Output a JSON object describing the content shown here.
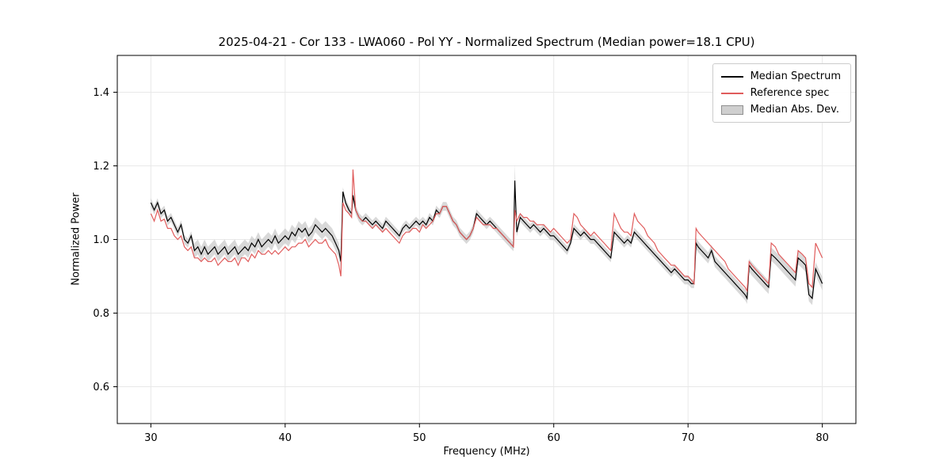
{
  "chart_data": {
    "type": "line",
    "title": "2025-04-21 - Cor 133 - LWA060 - Pol YY - Normalized Spectrum (Median power=18.1 CPU)",
    "xlabel": "Frequency (MHz)",
    "ylabel": "Normalized Power",
    "xlim": [
      27.5,
      82.5
    ],
    "ylim": [
      0.5,
      1.5
    ],
    "xticks": [
      30,
      40,
      50,
      60,
      70,
      80
    ],
    "yticks": [
      0.6,
      0.8,
      1.0,
      1.2,
      1.4
    ],
    "grid": true,
    "legend_position": "upper right",
    "colors": {
      "median": "#000000",
      "reference": "#e05c5c",
      "band": "#b9b9b9",
      "grid": "#e8e8e8",
      "frame": "#000000"
    },
    "legend": [
      {
        "label": "Median Spectrum",
        "type": "line",
        "color": "#000000"
      },
      {
        "label": "Reference spec",
        "type": "line",
        "color": "#e05c5c"
      },
      {
        "label": "Median Abs. Dev.",
        "type": "band",
        "color": "#cfcfcf"
      }
    ],
    "x": [
      30,
      30.25,
      30.5,
      30.75,
      31,
      31.25,
      31.5,
      31.75,
      32,
      32.25,
      32.5,
      32.75,
      33,
      33.25,
      33.5,
      33.75,
      34,
      34.25,
      34.5,
      34.75,
      35,
      35.25,
      35.5,
      35.75,
      36,
      36.25,
      36.5,
      36.75,
      37,
      37.25,
      37.5,
      37.75,
      38,
      38.25,
      38.5,
      38.75,
      39,
      39.25,
      39.5,
      39.75,
      40,
      40.25,
      40.5,
      40.75,
      41,
      41.25,
      41.5,
      41.75,
      42,
      42.25,
      42.5,
      42.75,
      43,
      43.25,
      43.5,
      43.75,
      44,
      44.15,
      44.3,
      44.5,
      44.75,
      44.95,
      45.05,
      45.25,
      45.5,
      45.75,
      46,
      46.25,
      46.5,
      46.75,
      47,
      47.25,
      47.5,
      47.75,
      48,
      48.25,
      48.5,
      48.75,
      49,
      49.25,
      49.5,
      49.75,
      50,
      50.25,
      50.5,
      50.75,
      51,
      51.25,
      51.5,
      51.75,
      52,
      52.25,
      52.5,
      52.75,
      53,
      53.25,
      53.5,
      53.75,
      54,
      54.25,
      54.5,
      54.75,
      55,
      55.25,
      55.5,
      55.75,
      56,
      56.25,
      56.5,
      56.75,
      57,
      57.1,
      57.25,
      57.5,
      57.75,
      58,
      58.25,
      58.5,
      58.75,
      59,
      59.25,
      59.5,
      59.75,
      60,
      60.25,
      60.5,
      60.75,
      61,
      61.25,
      61.5,
      61.75,
      62,
      62.25,
      62.5,
      62.75,
      63,
      63.25,
      63.5,
      63.75,
      64,
      64.25,
      64.5,
      64.75,
      65,
      65.25,
      65.5,
      65.75,
      66,
      66.25,
      66.5,
      66.75,
      67,
      67.25,
      67.5,
      67.75,
      68,
      68.25,
      68.5,
      68.75,
      69,
      69.25,
      69.5,
      69.75,
      70,
      70.25,
      70.45,
      70.6,
      70.75,
      71,
      71.25,
      71.5,
      71.75,
      72,
      72.25,
      72.5,
      72.75,
      73,
      73.25,
      73.5,
      73.75,
      74,
      74.25,
      74.4,
      74.55,
      74.75,
      75,
      75.25,
      75.5,
      75.75,
      76,
      76.2,
      76.5,
      76.75,
      77,
      77.25,
      77.5,
      77.75,
      78,
      78.2,
      78.5,
      78.75,
      79,
      79.25,
      79.5,
      79.75,
      80
    ],
    "series": [
      {
        "name": "Median Spectrum",
        "values": [
          1.1,
          1.08,
          1.1,
          1.07,
          1.08,
          1.05,
          1.06,
          1.04,
          1.02,
          1.04,
          1.0,
          0.99,
          1.01,
          0.97,
          0.98,
          0.96,
          0.98,
          0.96,
          0.97,
          0.98,
          0.96,
          0.97,
          0.98,
          0.96,
          0.97,
          0.98,
          0.96,
          0.97,
          0.98,
          0.97,
          0.99,
          0.98,
          1.0,
          0.98,
          0.99,
          1.0,
          0.99,
          1.01,
          0.99,
          1.0,
          1.01,
          1.0,
          1.02,
          1.01,
          1.03,
          1.02,
          1.03,
          1.01,
          1.02,
          1.04,
          1.03,
          1.02,
          1.03,
          1.02,
          1.01,
          0.99,
          0.97,
          0.94,
          1.13,
          1.1,
          1.08,
          1.07,
          1.12,
          1.08,
          1.06,
          1.05,
          1.06,
          1.05,
          1.04,
          1.05,
          1.04,
          1.03,
          1.05,
          1.04,
          1.03,
          1.02,
          1.01,
          1.03,
          1.04,
          1.03,
          1.04,
          1.05,
          1.04,
          1.05,
          1.04,
          1.06,
          1.05,
          1.08,
          1.07,
          1.09,
          1.09,
          1.07,
          1.05,
          1.04,
          1.02,
          1.01,
          1.0,
          1.01,
          1.03,
          1.07,
          1.06,
          1.05,
          1.04,
          1.05,
          1.04,
          1.03,
          1.02,
          1.01,
          1.0,
          0.99,
          0.98,
          1.16,
          1.02,
          1.06,
          1.05,
          1.04,
          1.03,
          1.04,
          1.03,
          1.02,
          1.03,
          1.02,
          1.01,
          1.01,
          1.0,
          0.99,
          0.98,
          0.97,
          0.99,
          1.03,
          1.02,
          1.01,
          1.02,
          1.01,
          1.0,
          1.0,
          0.99,
          0.98,
          0.97,
          0.96,
          0.95,
          1.02,
          1.01,
          1.0,
          0.99,
          1.0,
          0.99,
          1.02,
          1.01,
          1.0,
          0.99,
          0.98,
          0.97,
          0.96,
          0.95,
          0.94,
          0.93,
          0.92,
          0.91,
          0.92,
          0.91,
          0.9,
          0.89,
          0.89,
          0.88,
          0.88,
          0.99,
          0.98,
          0.97,
          0.96,
          0.95,
          0.97,
          0.94,
          0.93,
          0.92,
          0.91,
          0.9,
          0.89,
          0.88,
          0.87,
          0.86,
          0.85,
          0.84,
          0.93,
          0.92,
          0.91,
          0.9,
          0.89,
          0.88,
          0.87,
          0.96,
          0.95,
          0.94,
          0.93,
          0.92,
          0.91,
          0.9,
          0.89,
          0.95,
          0.94,
          0.93,
          0.85,
          0.84,
          0.92,
          0.9,
          0.88
        ]
      },
      {
        "name": "Reference spec",
        "values": [
          1.07,
          1.05,
          1.08,
          1.05,
          1.055,
          1.03,
          1.03,
          1.01,
          1.0,
          1.01,
          0.98,
          0.97,
          0.98,
          0.95,
          0.95,
          0.94,
          0.95,
          0.94,
          0.94,
          0.95,
          0.93,
          0.94,
          0.95,
          0.94,
          0.94,
          0.95,
          0.93,
          0.95,
          0.95,
          0.94,
          0.96,
          0.95,
          0.97,
          0.96,
          0.96,
          0.97,
          0.96,
          0.97,
          0.96,
          0.97,
          0.98,
          0.97,
          0.98,
          0.98,
          0.99,
          0.99,
          1.0,
          0.98,
          0.99,
          1.0,
          0.99,
          0.99,
          1.0,
          0.98,
          0.97,
          0.96,
          0.93,
          0.9,
          1.1,
          1.08,
          1.07,
          1.06,
          1.19,
          1.08,
          1.06,
          1.05,
          1.05,
          1.04,
          1.03,
          1.04,
          1.03,
          1.02,
          1.03,
          1.02,
          1.01,
          1.0,
          0.99,
          1.01,
          1.02,
          1.02,
          1.03,
          1.03,
          1.02,
          1.04,
          1.03,
          1.04,
          1.05,
          1.07,
          1.07,
          1.09,
          1.09,
          1.07,
          1.05,
          1.04,
          1.02,
          1.01,
          1.0,
          1.01,
          1.03,
          1.06,
          1.05,
          1.04,
          1.04,
          1.04,
          1.03,
          1.03,
          1.02,
          1.01,
          1.0,
          0.99,
          0.98,
          1.08,
          1.05,
          1.07,
          1.06,
          1.06,
          1.05,
          1.05,
          1.04,
          1.04,
          1.04,
          1.03,
          1.02,
          1.03,
          1.02,
          1.01,
          1.0,
          0.99,
          1.0,
          1.07,
          1.06,
          1.04,
          1.03,
          1.02,
          1.01,
          1.02,
          1.01,
          1.0,
          0.99,
          0.98,
          0.97,
          1.07,
          1.05,
          1.03,
          1.02,
          1.02,
          1.01,
          1.07,
          1.05,
          1.04,
          1.03,
          1.01,
          1.0,
          0.99,
          0.97,
          0.96,
          0.95,
          0.94,
          0.93,
          0.93,
          0.92,
          0.91,
          0.9,
          0.9,
          0.89,
          0.88,
          1.03,
          1.02,
          1.01,
          1.0,
          0.99,
          0.98,
          0.97,
          0.96,
          0.95,
          0.94,
          0.92,
          0.91,
          0.9,
          0.89,
          0.88,
          0.87,
          0.86,
          0.94,
          0.93,
          0.92,
          0.91,
          0.9,
          0.89,
          0.88,
          0.99,
          0.98,
          0.96,
          0.95,
          0.94,
          0.93,
          0.92,
          0.91,
          0.97,
          0.96,
          0.95,
          0.88,
          0.87,
          0.99,
          0.97,
          0.95
        ]
      }
    ],
    "mad_ranges": [
      [
        30,
        33,
        0.012
      ],
      [
        33,
        44.2,
        0.02
      ],
      [
        44.2,
        57.05,
        0.012
      ],
      [
        57.05,
        57.2,
        0.045
      ],
      [
        57.2,
        70.5,
        0.012
      ],
      [
        70.5,
        74.4,
        0.015
      ],
      [
        74.4,
        80.01,
        0.018
      ]
    ]
  }
}
